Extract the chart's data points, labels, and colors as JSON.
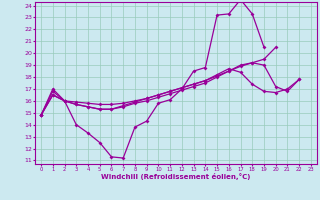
{
  "xlabel": "Windchill (Refroidissement éolien,°C)",
  "bg_color": "#cce9f0",
  "line_color": "#990099",
  "grid_color": "#99ccbb",
  "xlim": [
    -0.5,
    23.5
  ],
  "ylim": [
    10.7,
    24.3
  ],
  "yticks": [
    11,
    12,
    13,
    14,
    15,
    16,
    17,
    18,
    19,
    20,
    21,
    22,
    23,
    24
  ],
  "xticks": [
    0,
    1,
    2,
    3,
    4,
    5,
    6,
    7,
    8,
    9,
    10,
    11,
    12,
    13,
    14,
    15,
    16,
    17,
    18,
    19,
    20,
    21,
    22,
    23
  ],
  "line1_x": [
    0,
    1,
    2,
    3,
    4,
    5,
    6,
    7,
    8,
    9,
    10,
    11,
    12,
    13,
    14,
    15,
    16,
    17,
    18,
    19
  ],
  "line1_y": [
    14.8,
    17.0,
    16.0,
    14.0,
    13.3,
    12.5,
    11.3,
    11.2,
    13.8,
    14.3,
    15.8,
    16.1,
    17.0,
    18.5,
    18.8,
    23.2,
    23.3,
    24.5,
    23.3,
    20.5
  ],
  "line2_x": [
    0,
    1,
    2,
    3,
    4,
    5,
    6,
    7,
    8,
    9,
    10,
    11,
    12,
    13,
    14,
    15,
    16,
    17,
    18,
    19,
    20
  ],
  "line2_y": [
    14.8,
    16.8,
    16.0,
    15.9,
    15.8,
    15.7,
    15.7,
    15.8,
    16.0,
    16.2,
    16.5,
    16.8,
    17.1,
    17.4,
    17.7,
    18.1,
    18.5,
    18.9,
    19.2,
    19.5,
    20.5
  ],
  "line3_x": [
    0,
    1,
    2,
    3,
    4,
    5,
    6,
    7,
    8,
    9,
    10,
    11,
    12,
    13,
    14,
    15,
    16,
    17,
    18,
    19,
    20,
    21,
    22
  ],
  "line3_y": [
    14.8,
    16.5,
    16.0,
    15.7,
    15.5,
    15.3,
    15.3,
    15.5,
    15.8,
    16.0,
    16.3,
    16.6,
    16.9,
    17.2,
    17.5,
    18.0,
    18.5,
    19.0,
    19.2,
    19.0,
    17.2,
    16.8,
    17.8
  ],
  "line4_x": [
    0,
    1,
    2,
    3,
    4,
    5,
    6,
    7,
    8,
    9,
    10,
    11,
    12,
    13,
    14,
    15,
    16,
    17,
    18,
    19,
    20,
    21,
    22
  ],
  "line4_y": [
    14.8,
    16.5,
    16.0,
    15.7,
    15.5,
    15.3,
    15.3,
    15.6,
    15.9,
    16.2,
    16.5,
    16.8,
    17.1,
    17.4,
    17.7,
    18.2,
    18.7,
    18.4,
    17.4,
    16.8,
    16.7,
    17.0,
    17.8
  ]
}
